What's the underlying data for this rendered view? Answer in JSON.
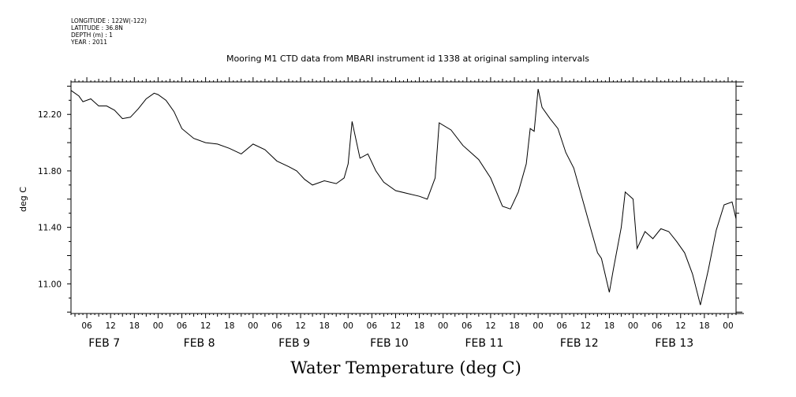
{
  "meta": {
    "longitude": "LONGITUDE : 122W(-122)",
    "latitude": "LATITUDE : 36.8N",
    "depth": "DEPTH (m) : 1",
    "year": "YEAR : 2011"
  },
  "chart_data": {
    "type": "line",
    "title": "Mooring M1 CTD data from MBARI instrument id 1338 at original sampling intervals",
    "xlabel": "Water Temperature (deg C)",
    "ylabel": "deg C",
    "ylim": [
      10.79,
      12.43
    ],
    "xlim": [
      "2011-02-07T02:00",
      "2011-02-14T02:00"
    ],
    "y_ticks": [
      11.0,
      11.4,
      11.8,
      12.2
    ],
    "y_tick_labels": [
      "11.00",
      "11.40",
      "11.80",
      "12.20"
    ],
    "x_hour_labels": [
      "06",
      "12",
      "18",
      "00"
    ],
    "x_day_labels": [
      "FEB  7",
      "FEB  8",
      "FEB  9",
      "FEB 10",
      "FEB 11",
      "FEB 12",
      "FEB 13"
    ],
    "grid": false,
    "series": [
      {
        "x": [
          "2011-02-07T02:00",
          "2011-02-07T04:00",
          "2011-02-07T05:00",
          "2011-02-07T07:00",
          "2011-02-07T09:00",
          "2011-02-07T11:00",
          "2011-02-07T13:00",
          "2011-02-07T15:00",
          "2011-02-07T17:00",
          "2011-02-07T19:00",
          "2011-02-07T21:00",
          "2011-02-07T23:00",
          "2011-02-08T00:00",
          "2011-02-08T02:00",
          "2011-02-08T04:00",
          "2011-02-08T06:00",
          "2011-02-08T09:00",
          "2011-02-08T12:00",
          "2011-02-08T15:00",
          "2011-02-08T18:00",
          "2011-02-08T21:00",
          "2011-02-09T00:00",
          "2011-02-09T03:00",
          "2011-02-09T06:00",
          "2011-02-09T09:00",
          "2011-02-09T11:00",
          "2011-02-09T13:00",
          "2011-02-09T15:00",
          "2011-02-09T18:00",
          "2011-02-09T21:00",
          "2011-02-09T23:00",
          "2011-02-10T00:00",
          "2011-02-10T01:00",
          "2011-02-10T02:00",
          "2011-02-10T03:00",
          "2011-02-10T05:00",
          "2011-02-10T07:00",
          "2011-02-10T09:00",
          "2011-02-10T12:00",
          "2011-02-10T15:00",
          "2011-02-10T18:00",
          "2011-02-10T20:00",
          "2011-02-10T22:00",
          "2011-02-10T23:00",
          "2011-02-11T02:00",
          "2011-02-11T05:00",
          "2011-02-11T07:00",
          "2011-02-11T09:00",
          "2011-02-11T12:00",
          "2011-02-11T15:00",
          "2011-02-11T17:00",
          "2011-02-11T19:00",
          "2011-02-11T21:00",
          "2011-02-11T22:00",
          "2011-02-11T23:00",
          "2011-02-12T00:00",
          "2011-02-12T01:00",
          "2011-02-12T03:00",
          "2011-02-12T05:00",
          "2011-02-12T07:00",
          "2011-02-12T09:00",
          "2011-02-12T11:00",
          "2011-02-12T13:00",
          "2011-02-12T15:00",
          "2011-02-12T16:00",
          "2011-02-12T18:00",
          "2011-02-12T19:00",
          "2011-02-12T21:00",
          "2011-02-12T22:00",
          "2011-02-13T00:00",
          "2011-02-13T01:00",
          "2011-02-13T03:00",
          "2011-02-13T05:00",
          "2011-02-13T07:00",
          "2011-02-13T09:00",
          "2011-02-13T11:00",
          "2011-02-13T13:00",
          "2011-02-13T15:00",
          "2011-02-13T17:00",
          "2011-02-13T19:00",
          "2011-02-13T21:00",
          "2011-02-13T23:00",
          "2011-02-14T01:00",
          "2011-02-14T02:00"
        ],
        "values": [
          12.37,
          12.33,
          12.29,
          12.31,
          12.26,
          12.26,
          12.23,
          12.17,
          12.18,
          12.24,
          12.31,
          12.35,
          12.34,
          12.3,
          12.22,
          12.1,
          12.03,
          12.0,
          11.99,
          11.96,
          11.92,
          11.99,
          11.95,
          11.87,
          11.83,
          11.8,
          11.74,
          11.7,
          11.73,
          11.71,
          11.75,
          11.85,
          12.15,
          12.02,
          11.89,
          11.92,
          11.8,
          11.72,
          11.66,
          11.64,
          11.62,
          11.6,
          11.75,
          12.14,
          12.09,
          11.98,
          11.93,
          11.88,
          11.75,
          11.55,
          11.53,
          11.65,
          11.85,
          12.1,
          12.08,
          12.38,
          12.25,
          12.17,
          12.1,
          11.93,
          11.82,
          11.62,
          11.42,
          11.22,
          11.18,
          10.94,
          11.1,
          11.4,
          11.65,
          11.6,
          11.25,
          11.37,
          11.32,
          11.39,
          11.37,
          11.3,
          11.22,
          11.07,
          10.85,
          11.1,
          11.38,
          11.56,
          11.58,
          11.46
        ]
      }
    ]
  }
}
